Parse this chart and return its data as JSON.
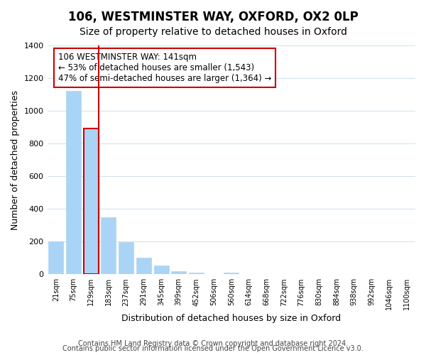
{
  "title": "106, WESTMINSTER WAY, OXFORD, OX2 0LP",
  "subtitle": "Size of property relative to detached houses in Oxford",
  "xlabel": "Distribution of detached houses by size in Oxford",
  "ylabel": "Number of detached properties",
  "bin_labels": [
    "21sqm",
    "75sqm",
    "129sqm",
    "183sqm",
    "237sqm",
    "291sqm",
    "345sqm",
    "399sqm",
    "452sqm",
    "506sqm",
    "560sqm",
    "614sqm",
    "668sqm",
    "722sqm",
    "776sqm",
    "830sqm",
    "884sqm",
    "938sqm",
    "992sqm",
    "1046sqm",
    "1100sqm"
  ],
  "bar_values": [
    200,
    1120,
    890,
    350,
    195,
    100,
    55,
    20,
    10,
    0,
    10,
    0,
    0,
    0,
    0,
    0,
    0,
    0,
    0,
    0,
    0
  ],
  "bar_color": "#aad4f5",
  "highlight_bar_index": 2,
  "highlight_color": "#cc0000",
  "vline_x_index": 2,
  "vline_color": "#cc0000",
  "annotation_text": "106 WESTMINSTER WAY: 141sqm\n← 53% of detached houses are smaller (1,543)\n47% of semi-detached houses are larger (1,364) →",
  "annotation_box_color": "#ffffff",
  "annotation_box_edge": "#cc0000",
  "ylim": [
    0,
    1400
  ],
  "yticks": [
    0,
    200,
    400,
    600,
    800,
    1000,
    1200,
    1400
  ],
  "footer_line1": "Contains HM Land Registry data © Crown copyright and database right 2024.",
  "footer_line2": "Contains public sector information licensed under the Open Government Licence v3.0.",
  "background_color": "#ffffff",
  "grid_color": "#d0e4f0",
  "title_fontsize": 12,
  "subtitle_fontsize": 10,
  "xlabel_fontsize": 9,
  "ylabel_fontsize": 9,
  "footer_fontsize": 7,
  "annotation_fontsize": 8.5
}
